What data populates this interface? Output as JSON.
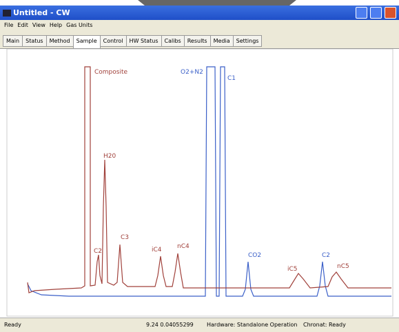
{
  "window": {
    "title": "Untitled - CW",
    "menu": [
      "File",
      "Edit",
      "View",
      "Help",
      "Gas Units"
    ],
    "tabs": [
      "Main",
      "Status",
      "Method",
      "Sample",
      "Control",
      "HW Status",
      "Calibs",
      "Results",
      "Media",
      "Settings"
    ],
    "active_tab": 3
  },
  "chromatogram": {
    "red_trace_labels": [
      "Composite",
      "H20",
      "C2",
      "C3",
      "iC4",
      "nC4",
      "iC5",
      "nC5"
    ],
    "blue_trace_labels": [
      "O2+N2",
      "C1",
      "CO2",
      "C2"
    ]
  },
  "status_bar": [
    "Ready",
    "9.24 0.04055299",
    "Hardware: Standalone Operation",
    "Chronat: Ready"
  ]
}
